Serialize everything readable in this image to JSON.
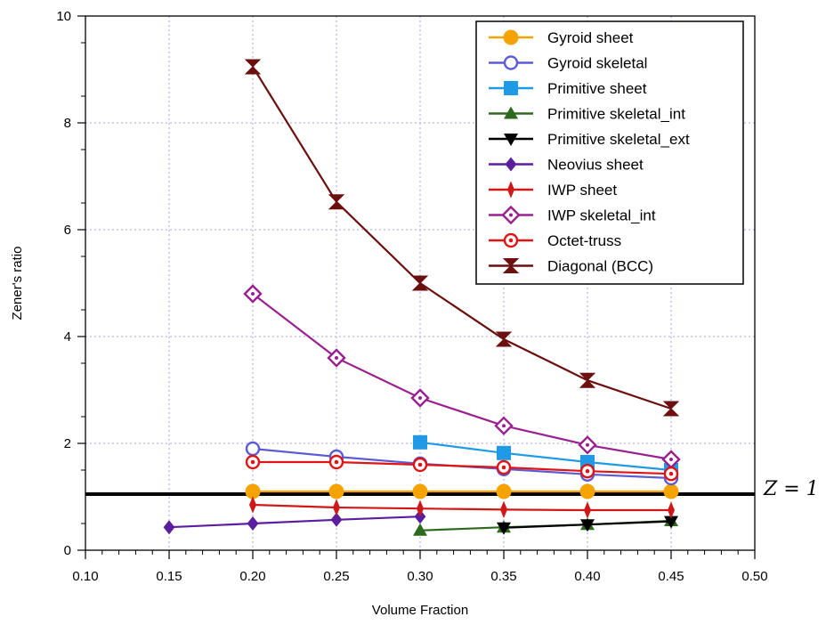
{
  "chart_data": {
    "type": "line",
    "title": "",
    "xlabel": "Volume Fraction",
    "ylabel": "Zener's ratio",
    "xlim": [
      0.1,
      0.5
    ],
    "ylim": [
      0,
      10
    ],
    "x_ticks": [
      "0.10",
      "0.15",
      "0.20",
      "0.25",
      "0.30",
      "0.35",
      "0.40",
      "0.45",
      "0.50"
    ],
    "y_ticks": [
      "0",
      "2",
      "4",
      "6",
      "8",
      "10"
    ],
    "grid": true,
    "legend_position": "top-right",
    "reference_line": {
      "y": 1.05,
      "label": "Z = 1",
      "color": "#000000"
    },
    "series": [
      {
        "name": "Gyroid sheet",
        "color": "#f5a300",
        "marker": "circle-filled",
        "x": [
          0.2,
          0.25,
          0.3,
          0.35,
          0.4,
          0.45
        ],
        "y": [
          1.1,
          1.1,
          1.1,
          1.1,
          1.1,
          1.1
        ]
      },
      {
        "name": "Gyroid skeletal",
        "color": "#5b5bd6",
        "marker": "circle-open",
        "x": [
          0.2,
          0.25,
          0.3,
          0.35,
          0.4,
          0.45
        ],
        "y": [
          1.9,
          1.75,
          1.62,
          1.52,
          1.42,
          1.35
        ]
      },
      {
        "name": "Primitive sheet",
        "color": "#1f9be6",
        "marker": "square-filled",
        "x": [
          0.3,
          0.35,
          0.4,
          0.45
        ],
        "y": [
          2.02,
          1.82,
          1.65,
          1.5
        ]
      },
      {
        "name": "Primitive skeletal_int",
        "color": "#2d6a1e",
        "marker": "triangle-up-filled",
        "x": [
          0.3,
          0.35,
          0.4,
          0.45
        ],
        "y": [
          0.37,
          0.43,
          0.48,
          0.55
        ]
      },
      {
        "name": "Primitive skeletal_ext",
        "color": "#000000",
        "marker": "triangle-down-filled",
        "x": [
          0.35,
          0.4,
          0.45
        ],
        "y": [
          0.42,
          0.48,
          0.54
        ]
      },
      {
        "name": "Neovius sheet",
        "color": "#5a1e9e",
        "marker": "diamond-filled",
        "x": [
          0.15,
          0.2,
          0.25,
          0.3
        ],
        "y": [
          0.43,
          0.5,
          0.57,
          0.63
        ]
      },
      {
        "name": "IWP sheet",
        "color": "#d01818",
        "marker": "thin-diamond-filled",
        "x": [
          0.2,
          0.25,
          0.3,
          0.35,
          0.4,
          0.45
        ],
        "y": [
          0.85,
          0.8,
          0.78,
          0.76,
          0.75,
          0.75
        ]
      },
      {
        "name": "IWP skeletal_int",
        "color": "#9a2090",
        "marker": "diamond-open-dot",
        "x": [
          0.2,
          0.25,
          0.3,
          0.35,
          0.4,
          0.45
        ],
        "y": [
          4.8,
          3.6,
          2.85,
          2.33,
          1.97,
          1.7
        ]
      },
      {
        "name": "Octet-truss",
        "color": "#e01414",
        "marker": "circle-open-dot",
        "x": [
          0.2,
          0.25,
          0.3,
          0.35,
          0.4,
          0.45
        ],
        "y": [
          1.65,
          1.65,
          1.6,
          1.55,
          1.48,
          1.43
        ]
      },
      {
        "name": "Diagonal (BCC)",
        "color": "#6b0f0f",
        "marker": "hourglass",
        "x": [
          0.2,
          0.25,
          0.3,
          0.35,
          0.4,
          0.45
        ],
        "y": [
          9.05,
          6.52,
          5.0,
          3.95,
          3.18,
          2.65
        ]
      }
    ]
  }
}
